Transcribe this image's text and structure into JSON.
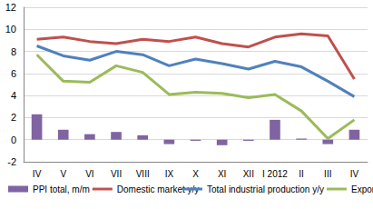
{
  "chart_data": {
    "type": "bar",
    "categories": [
      "IV",
      "V",
      "VI",
      "VII",
      "VIII",
      "IX",
      "X",
      "XI",
      "XII",
      "I 2012",
      "II",
      "III",
      "IV"
    ],
    "series": [
      {
        "name": "PPI total, m/m",
        "type": "bar",
        "color": "#8064a2",
        "values": [
          2.3,
          0.9,
          0.5,
          0.7,
          0.4,
          -0.4,
          -0.1,
          -0.5,
          -0.1,
          1.8,
          0.1,
          -0.4,
          0.9
        ]
      },
      {
        "name": "Total industrial production y/y",
        "type": "line",
        "color": "#4f81bd",
        "values": [
          8.5,
          7.6,
          7.2,
          8.0,
          7.7,
          6.7,
          7.3,
          6.9,
          6.4,
          7.1,
          6.6,
          5.3,
          3.9
        ]
      },
      {
        "name": "Domestic market y/y",
        "type": "line",
        "color": "#c0504d",
        "values": [
          9.1,
          9.3,
          8.9,
          8.7,
          9.1,
          8.9,
          9.3,
          8.7,
          8.4,
          9.3,
          9.6,
          9.4,
          5.5
        ]
      },
      {
        "name": "Exports y/y",
        "type": "line",
        "color": "#9bbb59",
        "values": [
          7.7,
          5.3,
          5.2,
          6.7,
          6.1,
          4.1,
          4.3,
          4.2,
          3.8,
          4.1,
          2.6,
          0.1,
          1.8
        ]
      }
    ],
    "ylim": [
      -2,
      12
    ],
    "yticks": [
      -2,
      0,
      2,
      4,
      6,
      8,
      10,
      12
    ],
    "grid": true,
    "legend": "bottom"
  }
}
